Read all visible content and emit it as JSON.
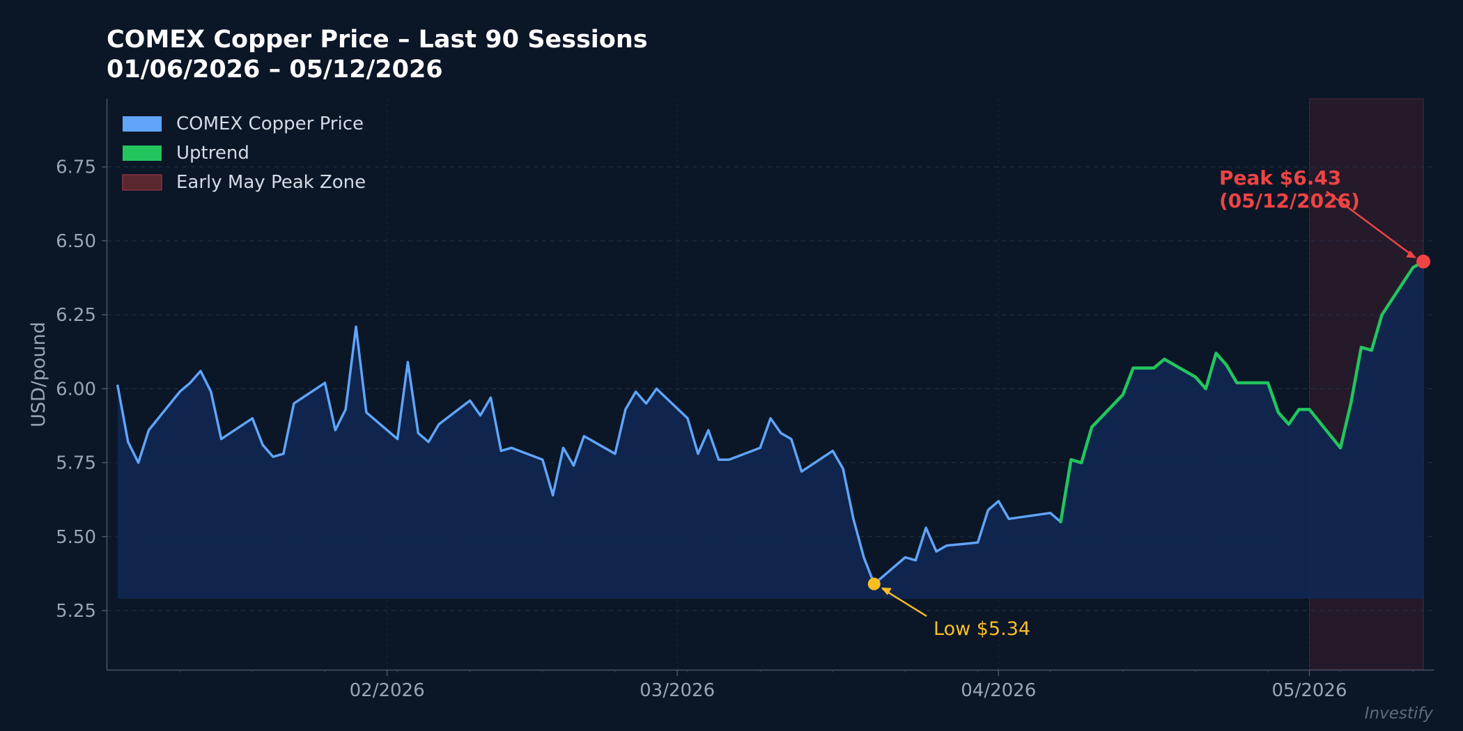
{
  "chart_data": {
    "type": "line",
    "title": "COMEX Copper Price – Last 90 Sessions",
    "subtitle": "01/06/2026 – 05/12/2026",
    "xlabel": "",
    "ylabel": "USD/pound",
    "x_range": [
      "2026-01-05",
      "2026-05-13"
    ],
    "ylim": [
      5.05,
      6.98
    ],
    "y_ticks": [
      5.25,
      5.5,
      5.75,
      6.0,
      6.25,
      6.5,
      6.75
    ],
    "y_tick_labels": [
      "5.25",
      "5.50",
      "5.75",
      "6.00",
      "6.25",
      "6.50",
      "6.75"
    ],
    "x_ticks": [
      "2026-02-01",
      "2026-03-01",
      "2026-04-01",
      "2026-05-01"
    ],
    "x_tick_labels": [
      "02/2026",
      "03/2026",
      "04/2026",
      "05/2026"
    ],
    "grid": "horizontal dashed",
    "legend_position": "top-left",
    "fill_baseline": 5.29,
    "series": [
      {
        "name": "COMEX Copper Price",
        "color": "#60a5fa",
        "points": [
          [
            "2026-01-06",
            6.01
          ],
          [
            "2026-01-07",
            5.82
          ],
          [
            "2026-01-08",
            5.75
          ],
          [
            "2026-01-09",
            5.86
          ],
          [
            "2026-01-12",
            5.99
          ],
          [
            "2026-01-13",
            6.02
          ],
          [
            "2026-01-14",
            6.06
          ],
          [
            "2026-01-15",
            5.99
          ],
          [
            "2026-01-16",
            5.83
          ],
          [
            "2026-01-19",
            5.9
          ],
          [
            "2026-01-20",
            5.81
          ],
          [
            "2026-01-21",
            5.77
          ],
          [
            "2026-01-22",
            5.78
          ],
          [
            "2026-01-23",
            5.95
          ],
          [
            "2026-01-26",
            6.02
          ],
          [
            "2026-01-27",
            5.86
          ],
          [
            "2026-01-28",
            5.93
          ],
          [
            "2026-01-29",
            6.21
          ],
          [
            "2026-01-30",
            5.92
          ],
          [
            "2026-02-02",
            5.83
          ],
          [
            "2026-02-03",
            6.09
          ],
          [
            "2026-02-04",
            5.85
          ],
          [
            "2026-02-05",
            5.82
          ],
          [
            "2026-02-06",
            5.88
          ],
          [
            "2026-02-09",
            5.96
          ],
          [
            "2026-02-10",
            5.91
          ],
          [
            "2026-02-11",
            5.97
          ],
          [
            "2026-02-12",
            5.79
          ],
          [
            "2026-02-13",
            5.8
          ],
          [
            "2026-02-16",
            5.76
          ],
          [
            "2026-02-17",
            5.64
          ],
          [
            "2026-02-18",
            5.8
          ],
          [
            "2026-02-19",
            5.74
          ],
          [
            "2026-02-20",
            5.84
          ],
          [
            "2026-02-23",
            5.78
          ],
          [
            "2026-02-24",
            5.93
          ],
          [
            "2026-02-25",
            5.99
          ],
          [
            "2026-02-26",
            5.95
          ],
          [
            "2026-02-27",
            6.0
          ],
          [
            "2026-03-02",
            5.9
          ],
          [
            "2026-03-03",
            5.78
          ],
          [
            "2026-03-04",
            5.86
          ],
          [
            "2026-03-05",
            5.76
          ],
          [
            "2026-03-06",
            5.76
          ],
          [
            "2026-03-09",
            5.8
          ],
          [
            "2026-03-10",
            5.9
          ],
          [
            "2026-03-11",
            5.85
          ],
          [
            "2026-03-12",
            5.83
          ],
          [
            "2026-03-13",
            5.72
          ],
          [
            "2026-03-16",
            5.79
          ],
          [
            "2026-03-17",
            5.73
          ],
          [
            "2026-03-18",
            5.56
          ],
          [
            "2026-03-19",
            5.43
          ],
          [
            "2026-03-20",
            5.34
          ],
          [
            "2026-03-23",
            5.43
          ],
          [
            "2026-03-24",
            5.42
          ],
          [
            "2026-03-25",
            5.53
          ],
          [
            "2026-03-26",
            5.45
          ],
          [
            "2026-03-27",
            5.47
          ],
          [
            "2026-03-30",
            5.48
          ],
          [
            "2026-03-31",
            5.59
          ],
          [
            "2026-04-01",
            5.62
          ],
          [
            "2026-04-02",
            5.56
          ],
          [
            "2026-04-06",
            5.58
          ],
          [
            "2026-04-07",
            5.55
          ]
        ]
      },
      {
        "name": "Uptrend",
        "color": "#22c55e",
        "points": [
          [
            "2026-04-07",
            5.55
          ],
          [
            "2026-04-08",
            5.76
          ],
          [
            "2026-04-09",
            5.75
          ],
          [
            "2026-04-10",
            5.87
          ],
          [
            "2026-04-13",
            5.98
          ],
          [
            "2026-04-14",
            6.07
          ],
          [
            "2026-04-15",
            6.07
          ],
          [
            "2026-04-16",
            6.07
          ],
          [
            "2026-04-17",
            6.1
          ],
          [
            "2026-04-20",
            6.04
          ],
          [
            "2026-04-21",
            6.0
          ],
          [
            "2026-04-22",
            6.12
          ],
          [
            "2026-04-23",
            6.08
          ],
          [
            "2026-04-24",
            6.02
          ],
          [
            "2026-04-27",
            6.02
          ],
          [
            "2026-04-28",
            5.92
          ],
          [
            "2026-04-29",
            5.88
          ],
          [
            "2026-04-30",
            5.93
          ],
          [
            "2026-05-01",
            5.93
          ],
          [
            "2026-05-04",
            5.8
          ],
          [
            "2026-05-05",
            5.95
          ],
          [
            "2026-05-06",
            6.14
          ],
          [
            "2026-05-07",
            6.13
          ],
          [
            "2026-05-08",
            6.25
          ],
          [
            "2026-05-11",
            6.41
          ],
          [
            "2026-05-12",
            6.43
          ]
        ]
      },
      {
        "name": "Early May Peak Zone",
        "color": "#7f2a33",
        "span": [
          "2026-05-01",
          "2026-05-12"
        ]
      }
    ],
    "annotations": [
      {
        "label": "Peak $6.43",
        "sublabel": "(05/12/2026)",
        "date": "2026-05-12",
        "value": 6.43,
        "color": "#ef4444"
      },
      {
        "label": "Low $5.34",
        "date": "2026-03-20",
        "value": 5.34,
        "color": "#fbbf24"
      }
    ],
    "watermark": "Investify"
  }
}
